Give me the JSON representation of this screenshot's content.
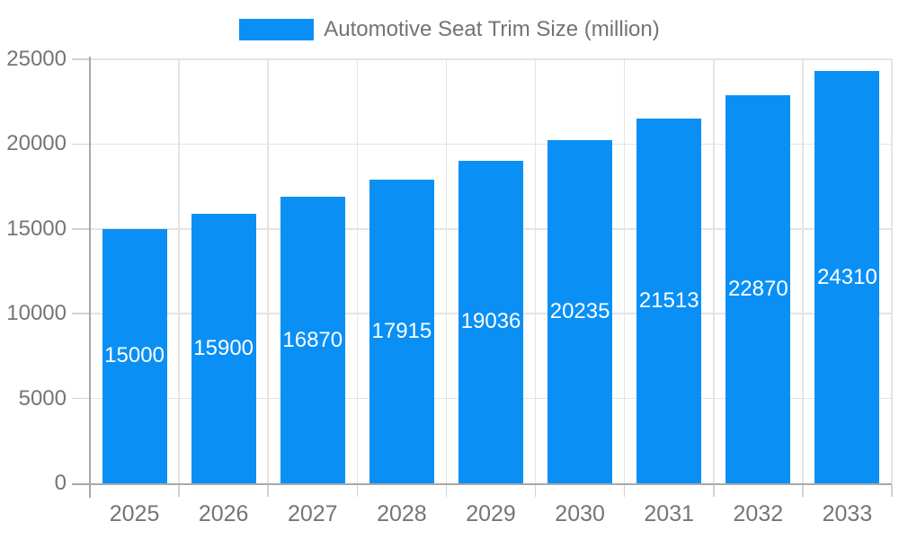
{
  "legend": {
    "label": "Automotive Seat Trim Size (million)"
  },
  "chart_data": {
    "type": "bar",
    "title": "Automotive Seat Trim Size (million)",
    "categories": [
      "2025",
      "2026",
      "2027",
      "2028",
      "2029",
      "2030",
      "2031",
      "2032",
      "2033"
    ],
    "series": [
      {
        "name": "Automotive Seat Trim Size (million)",
        "values": [
          15000,
          15900,
          16870,
          17915,
          19036,
          20235,
          21513,
          22870,
          24310
        ]
      }
    ],
    "xlabel": "",
    "ylabel": "",
    "ylim": [
      0,
      25000
    ],
    "yticks": [
      0,
      5000,
      10000,
      15000,
      20000,
      25000
    ],
    "grid": true,
    "legend_position": "top",
    "bar_value_labels_inside": true,
    "colors": {
      "bar": "#0a90f5",
      "bar_label": "#ffffff",
      "axis_label": "#757575",
      "legend_label": "#737373",
      "gridline": "#e4e4e4",
      "axis_line": "#a8a8a8",
      "background": "#ffffff"
    }
  }
}
